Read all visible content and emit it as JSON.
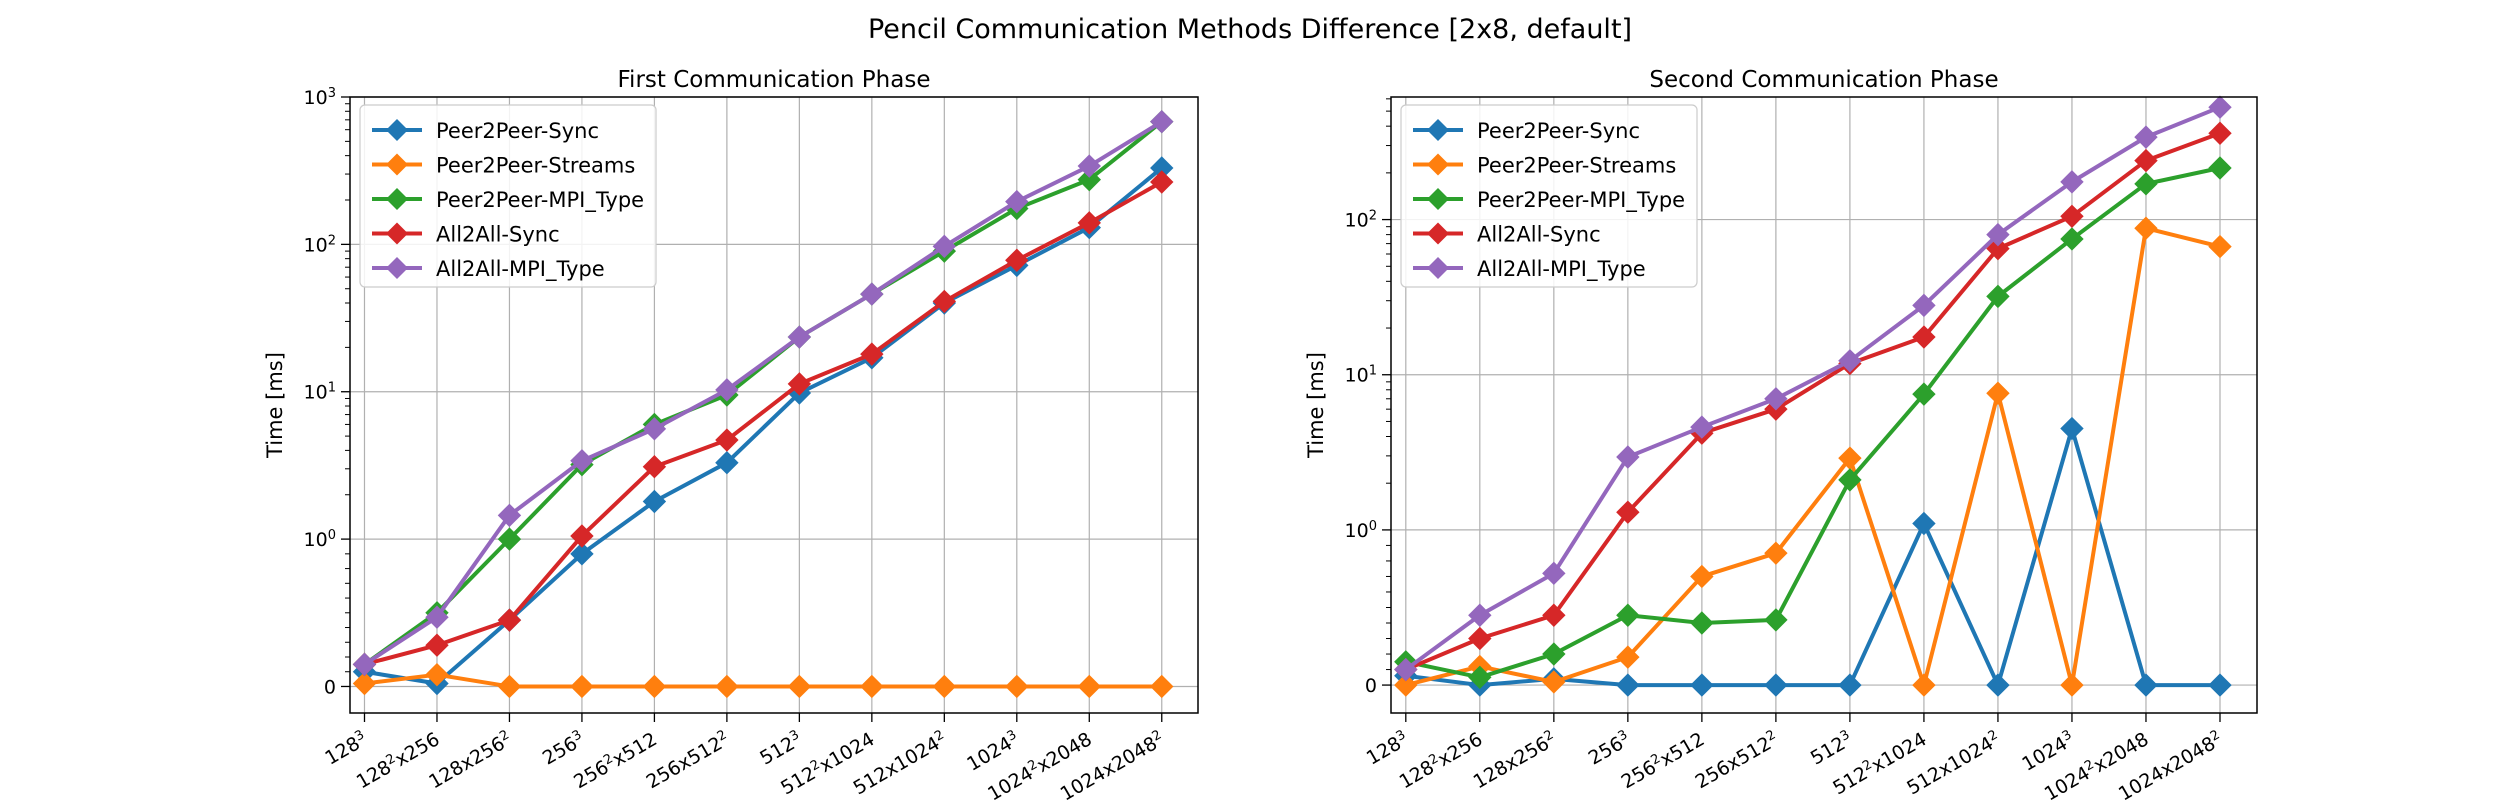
{
  "figure": {
    "suptitle": "Pencil Communication Methods Difference [2x8, default]"
  },
  "chart_data": [
    {
      "type": "line",
      "title": "First Communication Phase",
      "xlabel": "",
      "ylabel": "Time [ms]",
      "yscale": "symlog",
      "categories": [
        "128^3",
        "128^2x256",
        "128x256^2",
        "256^3",
        "256^2x512",
        "256x512^2",
        "512^3",
        "512^2x1024",
        "512x1024^2",
        "1024^3",
        "1024^2x2048",
        "1024x2048^2"
      ],
      "yticks": [
        "0",
        "10^0",
        "10^1",
        "10^2",
        "10^3"
      ],
      "grid": true,
      "legend": "top-left",
      "series": [
        {
          "name": "Peer2Peer-Sync",
          "color": "#1f77b4",
          "values": [
            0.1,
            0.02,
            0.45,
            0.9,
            1.8,
            3.3,
            9.8,
            17,
            40,
            72,
            130,
            330
          ]
        },
        {
          "name": "Peer2Peer-Streams",
          "color": "#ff7f0e",
          "values": [
            0.02,
            0.08,
            0.0,
            0.0,
            0.0,
            0.0,
            0.0,
            0.0,
            0.0,
            0.0,
            0.0,
            0.0
          ]
        },
        {
          "name": "Peer2Peer-MPI_Type",
          "color": "#2ca02c",
          "values": [
            0.15,
            0.5,
            1.0,
            3.2,
            6.0,
            9.5,
            23.5,
            46,
            90,
            175,
            275,
            680
          ]
        },
        {
          "name": "All2All-Sync",
          "color": "#d62728",
          "values": [
            0.15,
            0.28,
            0.45,
            1.05,
            3.1,
            4.7,
            11.3,
            18,
            41,
            78,
            140,
            265
          ]
        },
        {
          "name": "All2All-MPI_Type",
          "color": "#9467bd",
          "values": [
            0.15,
            0.47,
            1.45,
            3.4,
            5.6,
            10.3,
            23.5,
            46,
            97,
            195,
            340,
            680
          ]
        }
      ]
    },
    {
      "type": "line",
      "title": "Second Communication Phase",
      "xlabel": "",
      "ylabel": "Time [ms]",
      "yscale": "symlog",
      "categories": [
        "128^3",
        "128^2x256",
        "128x256^2",
        "256^3",
        "256^2x512",
        "256x512^2",
        "512^3",
        "512^2x1024",
        "512x1024^2",
        "1024^3",
        "1024^2x2048",
        "1024x2048^2"
      ],
      "yticks": [
        "0",
        "10^0",
        "10^1",
        "10^2"
      ],
      "grid": true,
      "legend": "top-left",
      "series": [
        {
          "name": "Peer2Peer-Sync",
          "color": "#1f77b4",
          "values": [
            0.06,
            0.0,
            0.04,
            0.0,
            0.0,
            0.0,
            0.0,
            1.1,
            0.0,
            4.5,
            0.0,
            0.0
          ]
        },
        {
          "name": "Peer2Peer-Streams",
          "color": "#ff7f0e",
          "values": [
            0.0,
            0.12,
            0.02,
            0.18,
            0.7,
            0.85,
            2.9,
            0.0,
            7.6,
            0.0,
            88,
            67
          ]
        },
        {
          "name": "Peer2Peer-MPI_Type",
          "color": "#2ca02c",
          "values": [
            0.15,
            0.05,
            0.2,
            0.45,
            0.4,
            0.42,
            2.1,
            7.5,
            32,
            75,
            170,
            215
          ]
        },
        {
          "name": "All2All-Sync",
          "color": "#d62728",
          "values": [
            0.1,
            0.3,
            0.45,
            1.3,
            4.2,
            6.0,
            11.8,
            17.5,
            65,
            105,
            240,
            360
          ]
        },
        {
          "name": "All2All-MPI_Type",
          "color": "#9467bd",
          "values": [
            0.1,
            0.45,
            0.72,
            2.95,
            4.6,
            7.0,
            12.3,
            28,
            80,
            175,
            340,
            530
          ]
        }
      ]
    }
  ]
}
